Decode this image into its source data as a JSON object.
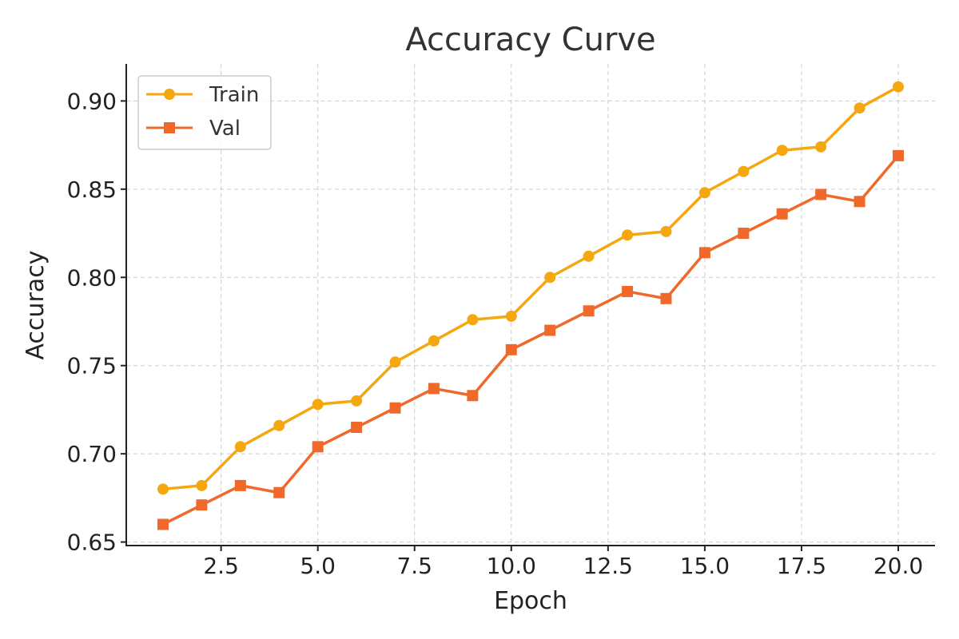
{
  "chart_data": {
    "type": "line",
    "title": "Accuracy Curve",
    "xlabel": "Epoch",
    "ylabel": "Accuracy",
    "x": [
      1,
      2,
      3,
      4,
      5,
      6,
      7,
      8,
      9,
      10,
      11,
      12,
      13,
      14,
      15,
      16,
      17,
      18,
      19,
      20
    ],
    "xlim": [
      0.05,
      20.95
    ],
    "ylim": [
      0.648,
      0.921
    ],
    "xticks": [
      2.5,
      5.0,
      7.5,
      10.0,
      12.5,
      15.0,
      17.5,
      20.0
    ],
    "xtick_labels": [
      "2.5",
      "5.0",
      "7.5",
      "10.0",
      "12.5",
      "15.0",
      "17.5",
      "20.0"
    ],
    "yticks": [
      0.65,
      0.7,
      0.75,
      0.8,
      0.85,
      0.9
    ],
    "ytick_labels": [
      "0.65",
      "0.70",
      "0.75",
      "0.80",
      "0.85",
      "0.90"
    ],
    "grid": true,
    "legend_position": "top-left",
    "series": [
      {
        "name": "Train",
        "marker": "circle",
        "color": "#F5A70F",
        "values": [
          0.68,
          0.682,
          0.704,
          0.716,
          0.728,
          0.73,
          0.752,
          0.764,
          0.776,
          0.778,
          0.8,
          0.812,
          0.824,
          0.826,
          0.848,
          0.86,
          0.872,
          0.874,
          0.896,
          0.908
        ]
      },
      {
        "name": "Val",
        "marker": "square",
        "color": "#F0692A",
        "values": [
          0.66,
          0.671,
          0.682,
          0.678,
          0.704,
          0.715,
          0.726,
          0.737,
          0.733,
          0.759,
          0.77,
          0.781,
          0.792,
          0.788,
          0.814,
          0.825,
          0.836,
          0.847,
          0.843,
          0.869
        ]
      }
    ]
  }
}
